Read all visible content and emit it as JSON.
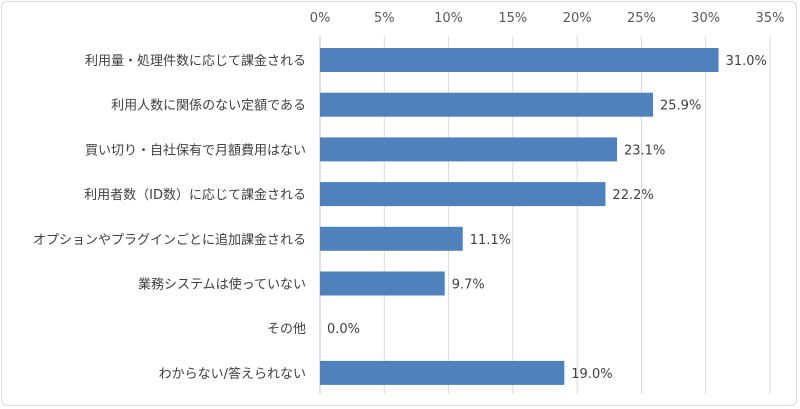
{
  "chart_data": {
    "type": "bar",
    "orientation": "horizontal",
    "categories": [
      "利用量・処理件数に応じて課金される",
      "利用人数に関係のない定額である",
      "買い切り・自社保有で月額費用はない",
      "利用者数（ID数）に応じて課金される",
      "オプションやプラグインごとに追加課金される",
      "業務システムは使っていない",
      "その他",
      "わからない/答えられない"
    ],
    "values": [
      31.0,
      25.9,
      23.1,
      22.2,
      11.1,
      9.7,
      0.0,
      19.0
    ],
    "data_labels": [
      "31.0%",
      "25.9%",
      "23.1%",
      "22.2%",
      "11.1%",
      "9.7%",
      "0.0%",
      "19.0%"
    ],
    "xlim": [
      0,
      35
    ],
    "x_ticks": [
      0,
      5,
      10,
      15,
      20,
      25,
      30,
      35
    ],
    "x_tick_labels": [
      "0%",
      "5%",
      "10%",
      "15%",
      "20%",
      "25%",
      "30%",
      "35%"
    ],
    "x_axis_position": "top",
    "grid": true,
    "bar_color": "#4f81bd",
    "title": "",
    "xlabel": "",
    "ylabel": ""
  }
}
